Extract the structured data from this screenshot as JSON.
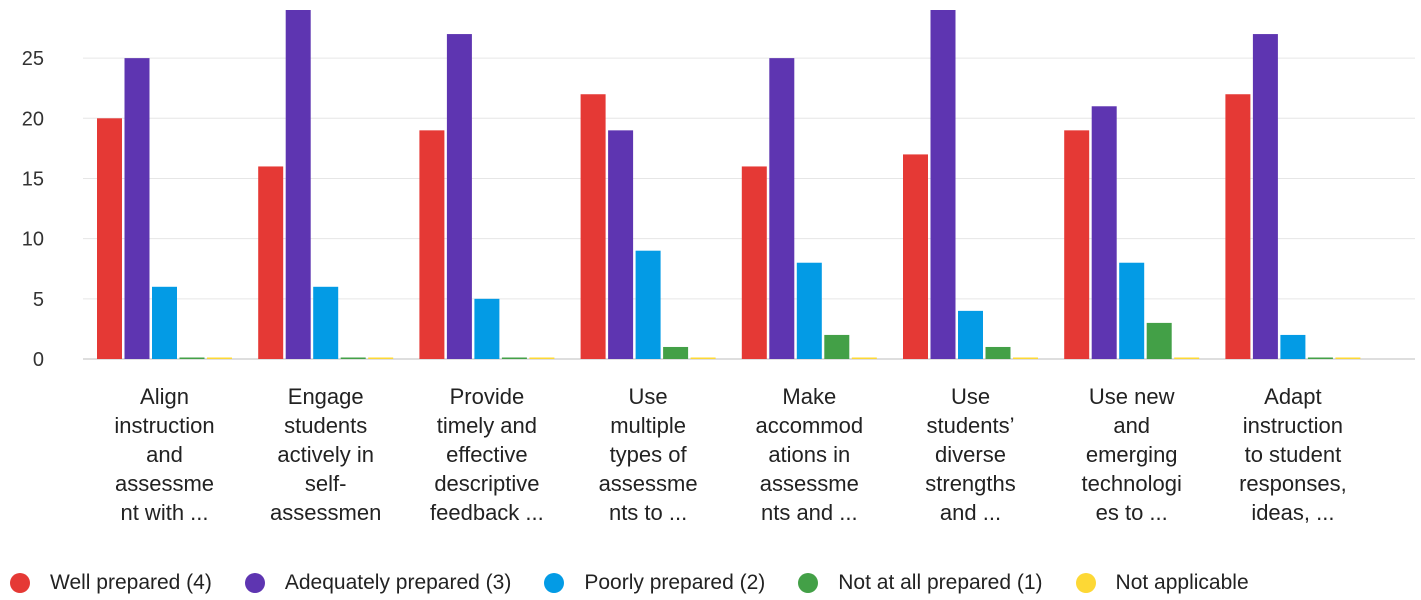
{
  "chart_data": {
    "type": "bar",
    "title": "",
    "xlabel": "",
    "ylabel": "",
    "ylim": [
      0,
      29
    ],
    "yticks": [
      0,
      5,
      10,
      15,
      20,
      25
    ],
    "grid": true,
    "legend_position": "bottom",
    "categories": [
      [
        "Align",
        "instruction",
        "and",
        "assessme",
        "nt with ..."
      ],
      [
        "Engage",
        "students",
        "actively in",
        "self-",
        "assessmen"
      ],
      [
        "Provide",
        "timely and",
        "effective",
        "descriptive",
        "feedback ..."
      ],
      [
        "Use",
        "multiple",
        "types of",
        "assessme",
        "nts to ..."
      ],
      [
        "Make",
        "accommod",
        "ations in",
        "assessme",
        "nts and ..."
      ],
      [
        "Use",
        "students’",
        "diverse",
        "strengths",
        "and ..."
      ],
      [
        "Use new",
        "and",
        "emerging",
        "technologi",
        "es to ..."
      ],
      [
        "Adapt",
        "instruction",
        "to student",
        "responses,",
        "ideas, ..."
      ]
    ],
    "series": [
      {
        "name": "Well prepared (4)",
        "color": "#e53935",
        "values": [
          20,
          16,
          19,
          22,
          16,
          17,
          19,
          22
        ]
      },
      {
        "name": "Adequately prepared (3)",
        "color": "#5e35b1",
        "values": [
          25,
          29,
          27,
          19,
          25,
          29,
          21,
          27
        ]
      },
      {
        "name": "Poorly prepared (2)",
        "color": "#039be5",
        "values": [
          6,
          6,
          5,
          9,
          8,
          4,
          8,
          2
        ]
      },
      {
        "name": "Not at all prepared (1)",
        "color": "#43a047",
        "values": [
          0,
          0,
          0,
          1,
          2,
          1,
          3,
          0
        ]
      },
      {
        "name": "Not applicable",
        "color": "#fdd835",
        "values": [
          0,
          0,
          0,
          0,
          0,
          0,
          0,
          0
        ]
      }
    ]
  }
}
